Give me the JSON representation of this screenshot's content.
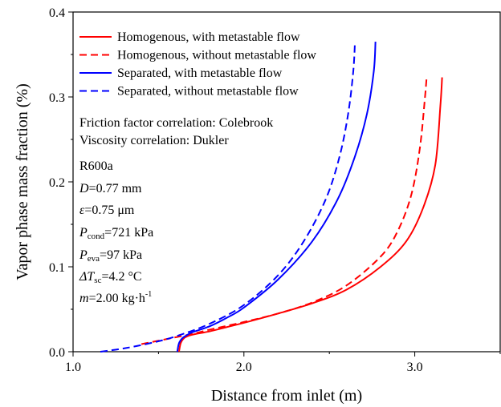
{
  "chart_data": {
    "type": "line",
    "xlabel": "Distance from inlet (m)",
    "ylabel": "Vapor phase mass fraction (%)",
    "xlim": [
      1.0,
      3.5
    ],
    "ylim": [
      0.0,
      0.4
    ],
    "xticks": [
      "1.0",
      "2.0",
      "3.0"
    ],
    "yticks": [
      "0.0",
      "0.1",
      "0.2",
      "0.3",
      "0.4"
    ],
    "grid": false,
    "legend_position": "top-left",
    "series": [
      {
        "name": "Homogenous, with metastable flow",
        "color": "#ff0000",
        "dash": "solid",
        "x": [
          1.62,
          1.63,
          1.65,
          1.68,
          1.72,
          1.8,
          1.9,
          2.0,
          2.2,
          2.4,
          2.6,
          2.8,
          2.95,
          3.05,
          3.12,
          3.15,
          3.16
        ],
        "y": [
          0.0,
          0.01,
          0.016,
          0.019,
          0.021,
          0.024,
          0.029,
          0.034,
          0.045,
          0.057,
          0.073,
          0.1,
          0.13,
          0.17,
          0.22,
          0.29,
          0.323
        ]
      },
      {
        "name": "Homogenous, without metastable flow",
        "color": "#ff0000",
        "dash": "dashed",
        "x": [
          1.4,
          1.5,
          1.6,
          1.7,
          1.8,
          2.0,
          2.2,
          2.4,
          2.6,
          2.8,
          2.9,
          2.98,
          3.03,
          3.06,
          3.07
        ],
        "y": [
          0.009,
          0.013,
          0.017,
          0.021,
          0.026,
          0.035,
          0.045,
          0.058,
          0.078,
          0.112,
          0.142,
          0.185,
          0.24,
          0.3,
          0.325
        ]
      },
      {
        "name": "Separated, with metastable flow",
        "color": "#0000ff",
        "dash": "solid",
        "x": [
          1.61,
          1.62,
          1.64,
          1.67,
          1.7,
          1.8,
          1.9,
          2.0,
          2.2,
          2.4,
          2.55,
          2.65,
          2.72,
          2.76,
          2.77
        ],
        "y": [
          0.0,
          0.01,
          0.016,
          0.02,
          0.023,
          0.03,
          0.04,
          0.052,
          0.085,
          0.13,
          0.18,
          0.23,
          0.28,
          0.33,
          0.365
        ]
      },
      {
        "name": "Separated, without metastable flow",
        "color": "#0000ff",
        "dash": "dashed",
        "x": [
          1.16,
          1.3,
          1.45,
          1.6,
          1.8,
          2.0,
          2.2,
          2.35,
          2.48,
          2.56,
          2.61,
          2.64,
          2.65
        ],
        "y": [
          0.0,
          0.004,
          0.01,
          0.018,
          0.033,
          0.055,
          0.09,
          0.13,
          0.18,
          0.23,
          0.28,
          0.33,
          0.365
        ]
      }
    ]
  },
  "annotations": {
    "friction": "Friction factor correlation: Colebrook",
    "viscosity": "Viscosity correlation: Dukler",
    "fluid": "R600a",
    "d_sym": "D",
    "d_val": "=0.77 mm",
    "eps_sym": "ε",
    "eps_val": "=0.75 μm",
    "pcond_sym": "P",
    "pcond_sub": "cond",
    "pcond_val": "=721 kPa",
    "peva_sym": "P",
    "peva_sub": "eva",
    "peva_val": "=97 kPa",
    "dt_sym": "ΔT",
    "dt_sub": "sc",
    "dt_val": "=4.2 °C",
    "m_sym": "m",
    "m_val": "=2.00 kg·h",
    "m_sup": "-1"
  }
}
